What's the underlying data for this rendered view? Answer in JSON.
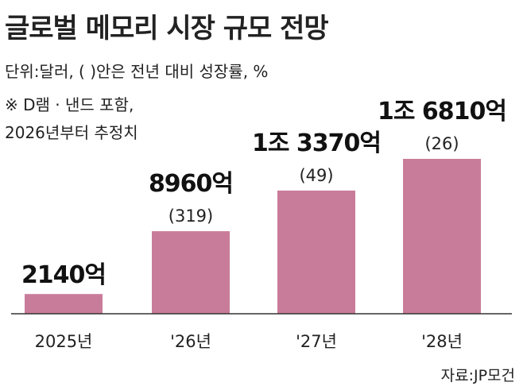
{
  "title": "글로벌 메모리 시장 규모 전망",
  "unit": "단위:달러, (    )안은 전년 대비 성장률, %",
  "note": "※ D램 · 낸드 포함,\n2026년부터 추정치",
  "source": "자료:JP모건",
  "chart_data": {
    "type": "bar",
    "categories": [
      "2025년",
      "'26년",
      "'27년",
      "'28년"
    ],
    "values": [
      2140,
      8960,
      13370,
      16810
    ],
    "value_labels": [
      "2140억",
      "8960억",
      "1조 3370억",
      "1조 6810억"
    ],
    "growth_labels": [
      "",
      "(319)",
      "(49)",
      "(26)"
    ],
    "ylim": [
      0,
      16810
    ],
    "grid": false,
    "colors": {
      "bar": "#c97c9a",
      "axis": "#333333"
    }
  }
}
